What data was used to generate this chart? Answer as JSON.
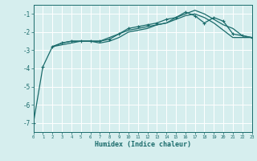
{
  "xlabel": "Humidex (Indice chaleur)",
  "bg_color": "#d6eeee",
  "grid_color": "#ffffff",
  "line_color": "#1a6b6b",
  "xlim": [
    0,
    23
  ],
  "ylim": [
    -7.5,
    -0.5
  ],
  "yticks": [
    -7,
    -6,
    -5,
    -4,
    -3,
    -2,
    -1
  ],
  "xticks": [
    0,
    1,
    2,
    3,
    4,
    5,
    6,
    7,
    8,
    9,
    10,
    11,
    12,
    13,
    14,
    15,
    16,
    17,
    18,
    19,
    20,
    21,
    22,
    23
  ],
  "curve1_x": [
    0,
    1,
    2,
    3,
    4,
    5,
    6,
    7,
    8,
    9,
    10,
    11,
    12,
    13,
    14,
    15,
    16,
    17,
    18,
    19,
    20,
    21,
    22,
    23
  ],
  "curve1_y": [
    -7.0,
    -3.9,
    -2.8,
    -2.6,
    -2.5,
    -2.5,
    -2.5,
    -2.5,
    -2.4,
    -2.1,
    -1.8,
    -1.7,
    -1.6,
    -1.5,
    -1.3,
    -1.2,
    -0.9,
    -1.1,
    -1.5,
    -1.2,
    -1.4,
    -2.1,
    -2.2,
    -2.3
  ],
  "curve2_x": [
    2,
    3,
    4,
    5,
    6,
    7,
    8,
    9,
    10,
    11,
    12,
    13,
    14,
    15,
    16,
    17,
    18,
    19,
    20,
    21,
    22,
    23
  ],
  "curve2_y": [
    -2.8,
    -2.6,
    -2.5,
    -2.5,
    -2.5,
    -2.6,
    -2.5,
    -2.3,
    -2.0,
    -1.9,
    -1.8,
    -1.6,
    -1.5,
    -1.3,
    -1.1,
    -1.0,
    -1.2,
    -1.5,
    -1.9,
    -2.3,
    -2.3,
    -2.3
  ],
  "curve3_x": [
    2,
    3,
    4,
    5,
    6,
    7,
    8,
    9,
    10,
    11,
    12,
    13,
    14,
    15,
    16,
    17,
    18,
    19,
    20,
    21,
    22,
    23
  ],
  "curve3_y": [
    -2.8,
    -2.7,
    -2.6,
    -2.5,
    -2.5,
    -2.5,
    -2.3,
    -2.1,
    -1.9,
    -1.8,
    -1.7,
    -1.6,
    -1.5,
    -1.2,
    -1.0,
    -0.8,
    -1.0,
    -1.3,
    -1.6,
    -1.8,
    -2.2,
    -2.3
  ]
}
